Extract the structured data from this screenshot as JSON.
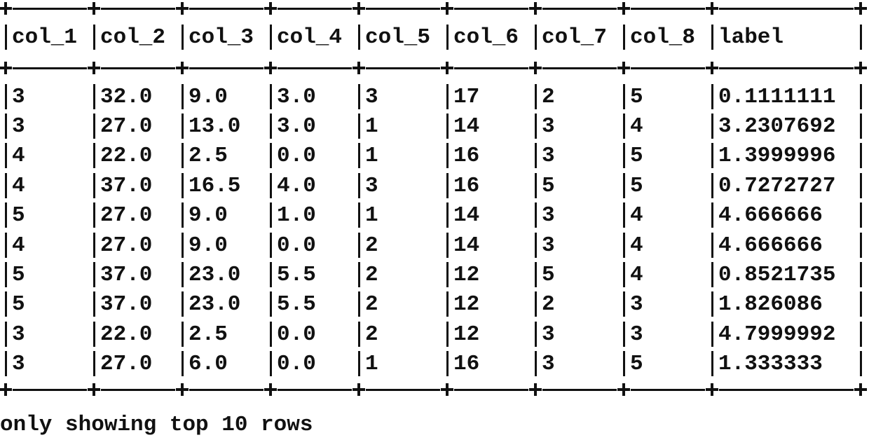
{
  "table": {
    "columns": [
      "col_1",
      "col_2",
      "col_3",
      "col_4",
      "col_5",
      "col_6",
      "col_7",
      "col_8",
      "label"
    ],
    "rows": [
      [
        "3",
        "32.0",
        "9.0",
        "3.0",
        "3",
        "17",
        "2",
        "5",
        "0.1111111"
      ],
      [
        "3",
        "27.0",
        "13.0",
        "3.0",
        "1",
        "14",
        "3",
        "4",
        "3.2307692"
      ],
      [
        "4",
        "22.0",
        "2.5",
        "0.0",
        "1",
        "16",
        "3",
        "5",
        "1.3999996"
      ],
      [
        "4",
        "37.0",
        "16.5",
        "4.0",
        "3",
        "16",
        "5",
        "5",
        "0.7272727"
      ],
      [
        "5",
        "27.0",
        "9.0",
        "1.0",
        "1",
        "14",
        "3",
        "4",
        "4.666666"
      ],
      [
        "4",
        "27.0",
        "9.0",
        "0.0",
        "2",
        "14",
        "3",
        "4",
        "4.666666"
      ],
      [
        "5",
        "37.0",
        "23.0",
        "5.5",
        "2",
        "12",
        "5",
        "4",
        "0.8521735"
      ],
      [
        "5",
        "37.0",
        "23.0",
        "5.5",
        "2",
        "12",
        "2",
        "3",
        "1.826086"
      ],
      [
        "3",
        "22.0",
        "2.5",
        "0.0",
        "2",
        "12",
        "3",
        "3",
        "4.7999992"
      ],
      [
        "3",
        "27.0",
        "6.0",
        "0.0",
        "1",
        "16",
        "3",
        "5",
        "1.333333"
      ]
    ]
  },
  "footer": {
    "text": "only showing top 10 rows"
  }
}
